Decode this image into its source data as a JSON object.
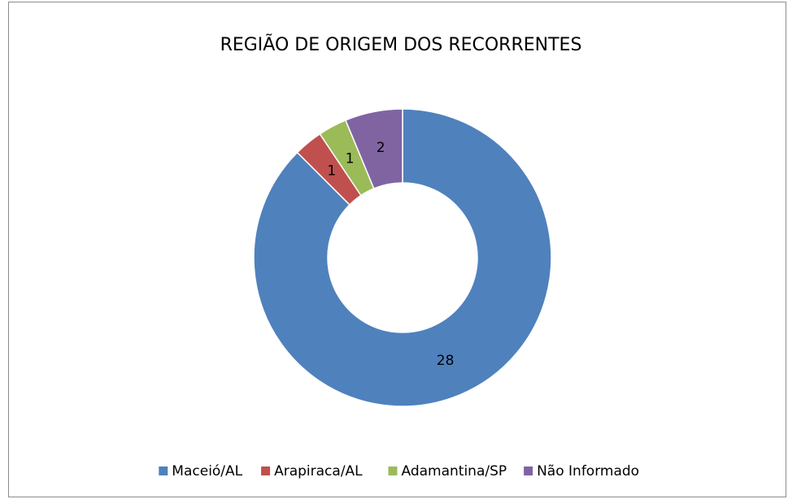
{
  "chart_data": {
    "type": "doughnut",
    "title": "REGIÃO DE ORIGEM DOS RECORRENTES",
    "categories": [
      "Maceió/AL",
      "Arapiraca/AL",
      "Adamantina/SP",
      "Não Informado"
    ],
    "values": [
      28,
      1,
      1,
      2
    ],
    "colors": [
      "#4f81bd",
      "#c0504d",
      "#9bbb59",
      "#8064a2"
    ],
    "legend": "bottom"
  }
}
